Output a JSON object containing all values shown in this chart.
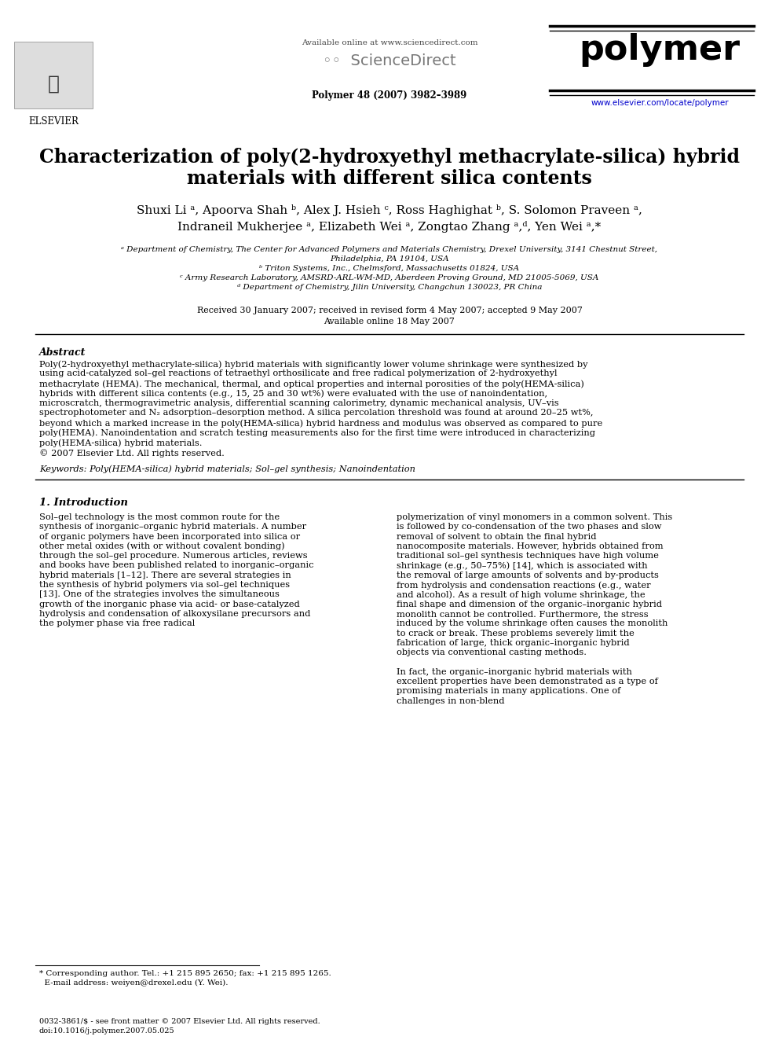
{
  "bg_color": "#ffffff",
  "header": {
    "available_online": "Available online at www.sciencedirect.com",
    "sciencedirect_text": "ScienceDirect",
    "journal_name": "polymer",
    "journal_info": "Polymer 48 (2007) 3982–3989",
    "journal_url": "www.elsevier.com/locate/polymer",
    "elsevier_text": "ELSEVIER"
  },
  "title_line1": "Characterization of poly(2-hydroxyethyl methacrylate-silica) hybrid",
  "title_line2": "materials with different silica contents",
  "author_line1": "Shuxi Li ᵃ, Apoorva Shah ᵇ, Alex J. Hsieh ᶜ, Ross Haghighat ᵇ, S. Solomon Praveen ᵃ,",
  "author_line2": "Indraneil Mukherjee ᵃ, Elizabeth Wei ᵃ, Zongtao Zhang ᵃ,ᵈ, Yen Wei ᵃ,*",
  "aff1": "ᵃ Department of Chemistry, The Center for Advanced Polymers and Materials Chemistry, Drexel University, 3141 Chestnut Street,",
  "aff1b": "Philadelphia, PA 19104, USA",
  "aff2": "ᵇ Triton Systems, Inc., Chelmsford, Massachusetts 01824, USA",
  "aff3": "ᶜ Army Research Laboratory, AMSRD-ARL-WM-MD, Aberdeen Proving Ground, MD 21005-5069, USA",
  "aff4": "ᵈ Department of Chemistry, Jilin University, Changchun 130023, PR China",
  "received": "Received 30 January 2007; received in revised form 4 May 2007; accepted 9 May 2007",
  "available_online": "Available online 18 May 2007",
  "abstract_title": "Abstract",
  "abstract_text": "    Poly(2-hydroxyethyl methacrylate-silica) hybrid materials with significantly lower volume shrinkage were synthesized by using acid-catalyzed sol–gel reactions of tetraethyl orthosilicate and free radical polymerization of 2-hydroxyethyl methacrylate (HEMA). The mechanical, thermal, and optical properties and internal porosities of the poly(HEMA-silica) hybrids with different silica contents (e.g., 15, 25 and 30 wt%) were evaluated with the use of nanoindentation, microscratch, thermogravimetric analysis, differential scanning calorimetry, dynamic mechanical analysis, UV–vis spectrophotometer and N₂ adsorption–desorption method. A silica percolation threshold was found at around 20–25 wt%, beyond which a marked increase in the poly(HEMA-silica) hybrid hardness and modulus was observed as compared to pure poly(HEMA). Nanoindentation and scratch testing measurements also for the first time were introduced in characterizing poly(HEMA-silica) hybrid materials.",
  "copyright": "© 2007 Elsevier Ltd. All rights reserved.",
  "keywords": "Keywords: Poly(HEMA-silica) hybrid materials; Sol–gel synthesis; Nanoindentation",
  "sec1_title": "1. Introduction",
  "sec1_col1_indent": "    Sol–gel technology is the most common route for the synthesis of inorganic–organic hybrid materials. A number of organic polymers have been incorporated into silica or other metal oxides (with or without covalent bonding) through the sol–gel procedure. Numerous articles, reviews and books have been published related to inorganic–organic hybrid materials [1–12]. There are several strategies in the synthesis of hybrid polymers via sol–gel techniques [13]. One of the strategies involves the simultaneous growth of the inorganic phase via acid- or base-catalyzed hydrolysis and condensation of alkoxysilane precursors and the polymer phase via free radical",
  "sec1_col2": "polymerization of vinyl monomers in a common solvent. This is followed by co-condensation of the two phases and slow removal of solvent to obtain the final hybrid nanocomposite materials. However, hybrids obtained from traditional sol–gel synthesis techniques have high volume shrinkage (e.g., 50–75%) [14], which is associated with the removal of large amounts of solvents and by-products from hydrolysis and condensation reactions (e.g., water and alcohol). As a result of high volume shrinkage, the final shape and dimension of the organic–inorganic hybrid monolith cannot be controlled. Furthermore, the stress induced by the volume shrinkage often causes the monolith to crack or break. These problems severely limit the fabrication of large, thick organic–inorganic hybrid objects via conventional casting methods.",
  "sec1_col2_para2": "    In fact, the organic–inorganic hybrid materials with excellent properties have been demonstrated as a type of promising materials in many applications. One of challenges in non-blend",
  "footnote_line1": "* Corresponding author. Tel.: +1 215 895 2650; fax: +1 215 895 1265.",
  "footnote_line2": "  E-mail address: weiyen@drexel.edu (Y. Wei).",
  "footer_line1": "0032-3861/$ - see front matter © 2007 Elsevier Ltd. All rights reserved.",
  "footer_line2": "doi:10.1016/j.polymer.2007.05.025",
  "line_color_top": "#000000",
  "line_color_url": "#0000cc"
}
